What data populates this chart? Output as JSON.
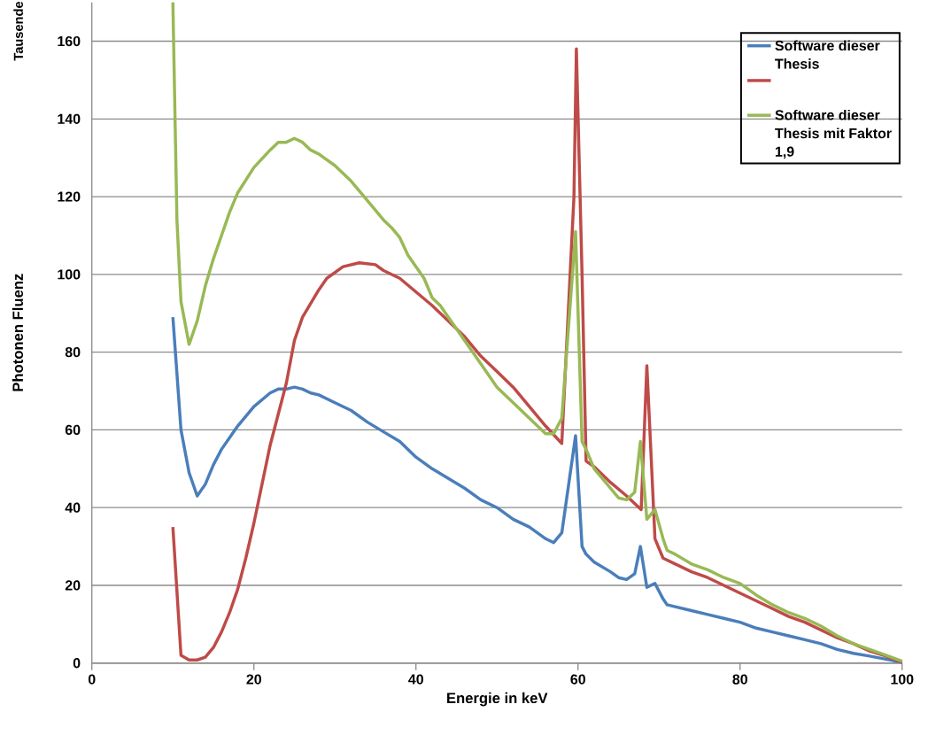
{
  "chart_data": {
    "type": "line",
    "xlabel": "Energie in keV",
    "ylabel": "Photonen Fluenz",
    "annotations": [
      "Tausende"
    ],
    "xlim": [
      0,
      100
    ],
    "ylim": [
      0,
      170
    ],
    "xticks": [
      0,
      20,
      40,
      60,
      80,
      100
    ],
    "yticks": [
      0,
      20,
      40,
      60,
      80,
      100,
      120,
      140,
      160
    ],
    "grid": "y",
    "legend": "top right",
    "marker": "none",
    "line_style": "solid",
    "series": [
      {
        "name": "Software dieser Thesis",
        "color": "#4a7ebb",
        "x": [
          10,
          11,
          12,
          13,
          14,
          15,
          16,
          17,
          18,
          20,
          22,
          23,
          24,
          25,
          26,
          27,
          28,
          30,
          32,
          34,
          36,
          38,
          40,
          42,
          44,
          46,
          48,
          50,
          52,
          54,
          56,
          57,
          58,
          59.7,
          60.5,
          61,
          62,
          64,
          65,
          66,
          67,
          67.7,
          68.5,
          69.5,
          70.5,
          71,
          72,
          74,
          76,
          78,
          80,
          82,
          84,
          86,
          88,
          90,
          92,
          94,
          96,
          98,
          100
        ],
        "values": [
          89,
          60,
          49,
          43,
          46,
          51,
          55,
          58,
          61,
          66,
          69.5,
          70.5,
          70.5,
          71,
          70.5,
          69.5,
          69,
          67,
          65,
          62,
          59.5,
          57,
          53,
          50,
          47.5,
          45,
          42,
          40,
          37,
          35,
          32,
          31,
          33.5,
          58.5,
          30,
          28,
          26,
          23.5,
          22,
          21.5,
          23,
          30,
          19.5,
          20.5,
          16.5,
          15,
          14.5,
          13.5,
          12.5,
          11.5,
          10.5,
          9,
          8,
          7,
          6,
          5,
          3.5,
          2.5,
          1.8,
          1,
          0.2
        ]
      },
      {
        "color": "#be4b48",
        "x": [
          10,
          11,
          12,
          13,
          14,
          15,
          16,
          17,
          18,
          19,
          20,
          21,
          22,
          23,
          24,
          25,
          26,
          28,
          29,
          31,
          33,
          35,
          36,
          38,
          40,
          42,
          44,
          46,
          48,
          50,
          52,
          54,
          56,
          58,
          59.5,
          59.8,
          60.5,
          61,
          62,
          64,
          66,
          67.8,
          68.5,
          69.5,
          70.5,
          72,
          74,
          76,
          78,
          80,
          82,
          84,
          86,
          88,
          90,
          92,
          94,
          96,
          98,
          100
        ],
        "values": [
          35,
          2,
          0.8,
          0.8,
          1.5,
          4,
          8,
          13,
          19,
          27,
          36,
          46,
          56,
          64,
          72,
          83,
          89,
          96,
          99,
          102,
          103,
          102.5,
          101,
          99,
          95.5,
          92,
          88,
          84,
          79,
          75,
          71,
          66,
          61,
          56.5,
          120,
          158,
          100,
          52,
          50.5,
          46.5,
          43,
          39.5,
          76.5,
          32,
          27,
          25.5,
          23.5,
          22,
          20,
          18,
          16,
          14,
          12,
          10.5,
          8.5,
          6.5,
          5,
          3.1,
          1.8,
          0.2
        ]
      },
      {
        "name": "Software dieser Thesis mit Faktor 1,9",
        "color": "#98b954",
        "x": [
          10,
          10.5,
          11,
          12,
          13,
          14,
          15,
          16,
          17,
          18,
          20,
          22,
          23,
          24,
          25,
          26,
          27,
          28,
          30,
          32,
          34,
          36,
          37,
          38,
          39,
          40,
          41,
          42,
          43,
          44,
          46,
          48,
          50,
          52,
          54,
          56,
          57,
          58,
          59.7,
          60.5,
          61,
          62,
          64,
          65,
          66,
          67,
          67.7,
          68.5,
          69.5,
          70.5,
          71,
          72,
          74,
          76,
          78,
          80,
          82,
          84,
          86,
          88,
          90,
          92,
          94,
          96,
          98,
          100
        ],
        "values": [
          170,
          114,
          93,
          82,
          88,
          97,
          104,
          110,
          116,
          121,
          127.5,
          132,
          134,
          134,
          135,
          134,
          132,
          131,
          128,
          124,
          119,
          114,
          112,
          109.5,
          105,
          102,
          99,
          94,
          92,
          89,
          83,
          77,
          71,
          67,
          63,
          59,
          59,
          63,
          111,
          57,
          55,
          50,
          45,
          42.5,
          42,
          44,
          57,
          37,
          39.5,
          32,
          29,
          28,
          25.5,
          24,
          22,
          20.5,
          17.5,
          15,
          13,
          11.5,
          9.5,
          7,
          5,
          3.5,
          2,
          0.5
        ]
      }
    ]
  }
}
